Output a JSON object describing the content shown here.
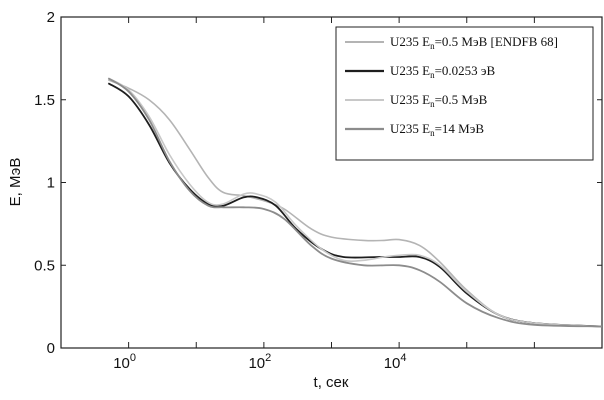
{
  "chart_data": {
    "type": "line",
    "xscale": "log",
    "xlabel": "t, сек",
    "ylabel": "E, МэВ",
    "xlim": [
      0.1,
      10000000
    ],
    "ylim": [
      0,
      2
    ],
    "x_ticks": [
      {
        "value": 1,
        "base": "10",
        "exp": "0"
      },
      {
        "value": 100,
        "base": "10",
        "exp": "2"
      },
      {
        "value": 10000,
        "base": "10",
        "exp": "4"
      }
    ],
    "y_ticks": [
      {
        "value": 0,
        "label": "0"
      },
      {
        "value": 0.5,
        "label": "0.5"
      },
      {
        "value": 1,
        "label": "1"
      },
      {
        "value": 1.5,
        "label": "1.5"
      },
      {
        "value": 2,
        "label": "2"
      }
    ],
    "legend_position": "top-right",
    "series": [
      {
        "label_pre": "U235 E",
        "label_sub": "n",
        "label_post": "=0.5 МэВ [ENDFB 68]",
        "color": "#b4b4b4",
        "stroke": 1.6,
        "points": [
          [
            0.5,
            1.62
          ],
          [
            1,
            1.57
          ],
          [
            2,
            1.5
          ],
          [
            4,
            1.38
          ],
          [
            8,
            1.2
          ],
          [
            15,
            1.03
          ],
          [
            25,
            0.94
          ],
          [
            50,
            0.92
          ],
          [
            100,
            0.89
          ],
          [
            200,
            0.84
          ],
          [
            500,
            0.72
          ],
          [
            1000,
            0.67
          ],
          [
            3000,
            0.65
          ],
          [
            6000,
            0.65
          ],
          [
            10000,
            0.655
          ],
          [
            20000,
            0.62
          ],
          [
            40000,
            0.52
          ],
          [
            100000,
            0.35
          ],
          [
            300000,
            0.2
          ],
          [
            1000000,
            0.15
          ],
          [
            10000000,
            0.13
          ]
        ]
      },
      {
        "label_pre": "U235 E",
        "label_sub": "n",
        "label_post": "=0.0253 эВ",
        "color": "#1e1e1e",
        "stroke": 1.8,
        "points": [
          [
            0.5,
            1.6
          ],
          [
            1,
            1.52
          ],
          [
            2,
            1.35
          ],
          [
            4,
            1.12
          ],
          [
            8,
            0.96
          ],
          [
            15,
            0.87
          ],
          [
            25,
            0.86
          ],
          [
            50,
            0.91
          ],
          [
            80,
            0.91
          ],
          [
            150,
            0.86
          ],
          [
            300,
            0.72
          ],
          [
            700,
            0.6
          ],
          [
            1500,
            0.55
          ],
          [
            5000,
            0.55
          ],
          [
            10000,
            0.55
          ],
          [
            20000,
            0.55
          ],
          [
            40000,
            0.49
          ],
          [
            100000,
            0.33
          ],
          [
            300000,
            0.2
          ],
          [
            1000000,
            0.15
          ],
          [
            10000000,
            0.13
          ]
        ]
      },
      {
        "label_pre": "U235 E",
        "label_sub": "n",
        "label_post": "=0.5 МэВ",
        "color": "#c8c8c8",
        "stroke": 1.6,
        "points": [
          [
            0.5,
            1.63
          ],
          [
            1,
            1.56
          ],
          [
            2,
            1.4
          ],
          [
            4,
            1.17
          ],
          [
            8,
            0.99
          ],
          [
            15,
            0.88
          ],
          [
            25,
            0.87
          ],
          [
            50,
            0.93
          ],
          [
            80,
            0.93
          ],
          [
            150,
            0.88
          ],
          [
            300,
            0.74
          ],
          [
            700,
            0.6
          ],
          [
            1500,
            0.53
          ],
          [
            3000,
            0.53
          ],
          [
            6000,
            0.55
          ],
          [
            10000,
            0.56
          ],
          [
            20000,
            0.56
          ],
          [
            40000,
            0.5
          ],
          [
            100000,
            0.34
          ],
          [
            300000,
            0.2
          ],
          [
            1000000,
            0.15
          ],
          [
            10000000,
            0.13
          ]
        ]
      },
      {
        "label_pre": "U235 E",
        "label_sub": "n",
        "label_post": "=14 МэВ",
        "color": "#8c8c8c",
        "stroke": 1.8,
        "points": [
          [
            0.5,
            1.63
          ],
          [
            1,
            1.55
          ],
          [
            2,
            1.38
          ],
          [
            4,
            1.13
          ],
          [
            8,
            0.95
          ],
          [
            15,
            0.86
          ],
          [
            25,
            0.85
          ],
          [
            50,
            0.85
          ],
          [
            100,
            0.84
          ],
          [
            200,
            0.78
          ],
          [
            500,
            0.62
          ],
          [
            1000,
            0.54
          ],
          [
            3000,
            0.5
          ],
          [
            10000,
            0.5
          ],
          [
            20000,
            0.47
          ],
          [
            40000,
            0.4
          ],
          [
            100000,
            0.27
          ],
          [
            300000,
            0.18
          ],
          [
            1000000,
            0.14
          ],
          [
            10000000,
            0.13
          ]
        ]
      }
    ]
  }
}
